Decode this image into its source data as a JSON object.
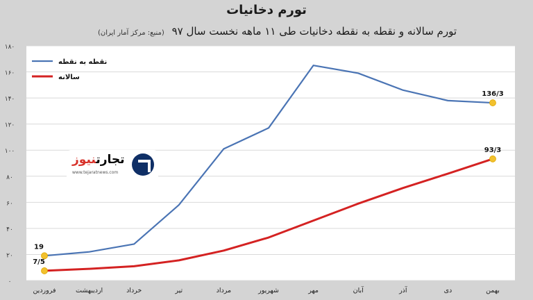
{
  "header": {
    "title": "تورم دخانیات",
    "subtitle": "تورم سالانه و نقطه به نقطه دخانیات طی ۱۱ ماهه نخست سال ۹۷",
    "source": "(منبع: مرکز آمار ایران)"
  },
  "watermark": {
    "brand_a": "تجارت",
    "brand_b": "نیوز",
    "url": "www.tejaratnews.com"
  },
  "colors": {
    "point_to_point": "#4a74b4",
    "annual": "#d42222",
    "marker": "#f2c12e",
    "plot_bg": "#ffffff",
    "page_bg": "#d4d4d4"
  },
  "chart_data": {
    "type": "line",
    "title": "تورم دخانیات",
    "categories": [
      "فروردین",
      "اردیبهشت",
      "خرداد",
      "تیر",
      "مرداد",
      "شهریور",
      "مهر",
      "آبان",
      "آذر",
      "دی",
      "بهمن"
    ],
    "y_ticks": [
      "۰",
      "۲۰",
      "۴۰",
      "۶۰",
      "۸۰",
      "۱۰۰",
      "۱۲۰",
      "۱۴۰",
      "۱۶۰",
      "۱۸۰"
    ],
    "ylim": [
      0,
      180
    ],
    "grid": true,
    "legend_position": "top-left",
    "series": [
      {
        "name": "نقطه به نقطه",
        "color_key": "point_to_point",
        "values": [
          19,
          22,
          28,
          58,
          101,
          117,
          165,
          159,
          146,
          138,
          136.3
        ]
      },
      {
        "name": "سالانه",
        "color_key": "annual",
        "values": [
          7.5,
          9,
          11,
          15.5,
          23,
          33,
          46,
          59,
          71,
          82,
          93.3
        ]
      }
    ],
    "annotations": [
      {
        "series": 0,
        "index": 0,
        "label": "19"
      },
      {
        "series": 0,
        "index": 10,
        "label": "136/3"
      },
      {
        "series": 1,
        "index": 0,
        "label": "7/5"
      },
      {
        "series": 1,
        "index": 10,
        "label": "93/3"
      }
    ]
  }
}
